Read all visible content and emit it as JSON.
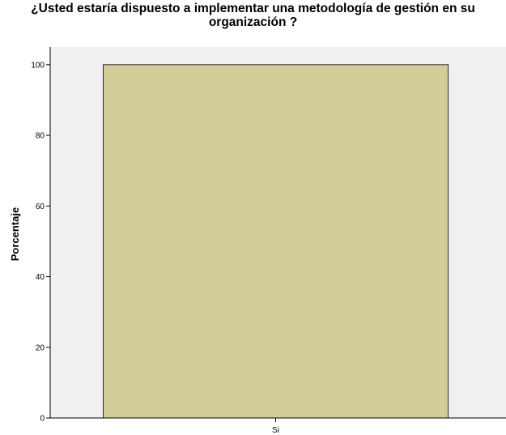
{
  "chart_data": {
    "type": "bar",
    "title": "¿Usted estaría dispuesto a implementar una metodología de gestión en su organización ?",
    "title_lines": [
      "¿Usted estaría dispuesto a implementar una metodología de gestión en su",
      "organización ?"
    ],
    "xlabel": "",
    "ylabel": "Porcentaje",
    "categories": [
      "Si"
    ],
    "values": [
      100
    ],
    "ylim": [
      0,
      105
    ],
    "yticks": [
      0,
      20,
      40,
      60,
      80,
      100
    ],
    "grid": false,
    "legend": "none",
    "colors": {
      "bar_fill": "#d3cd98",
      "bar_stroke": "#2a2a2a",
      "plot_background": "#f0f0f0",
      "axis": "#000000"
    }
  }
}
